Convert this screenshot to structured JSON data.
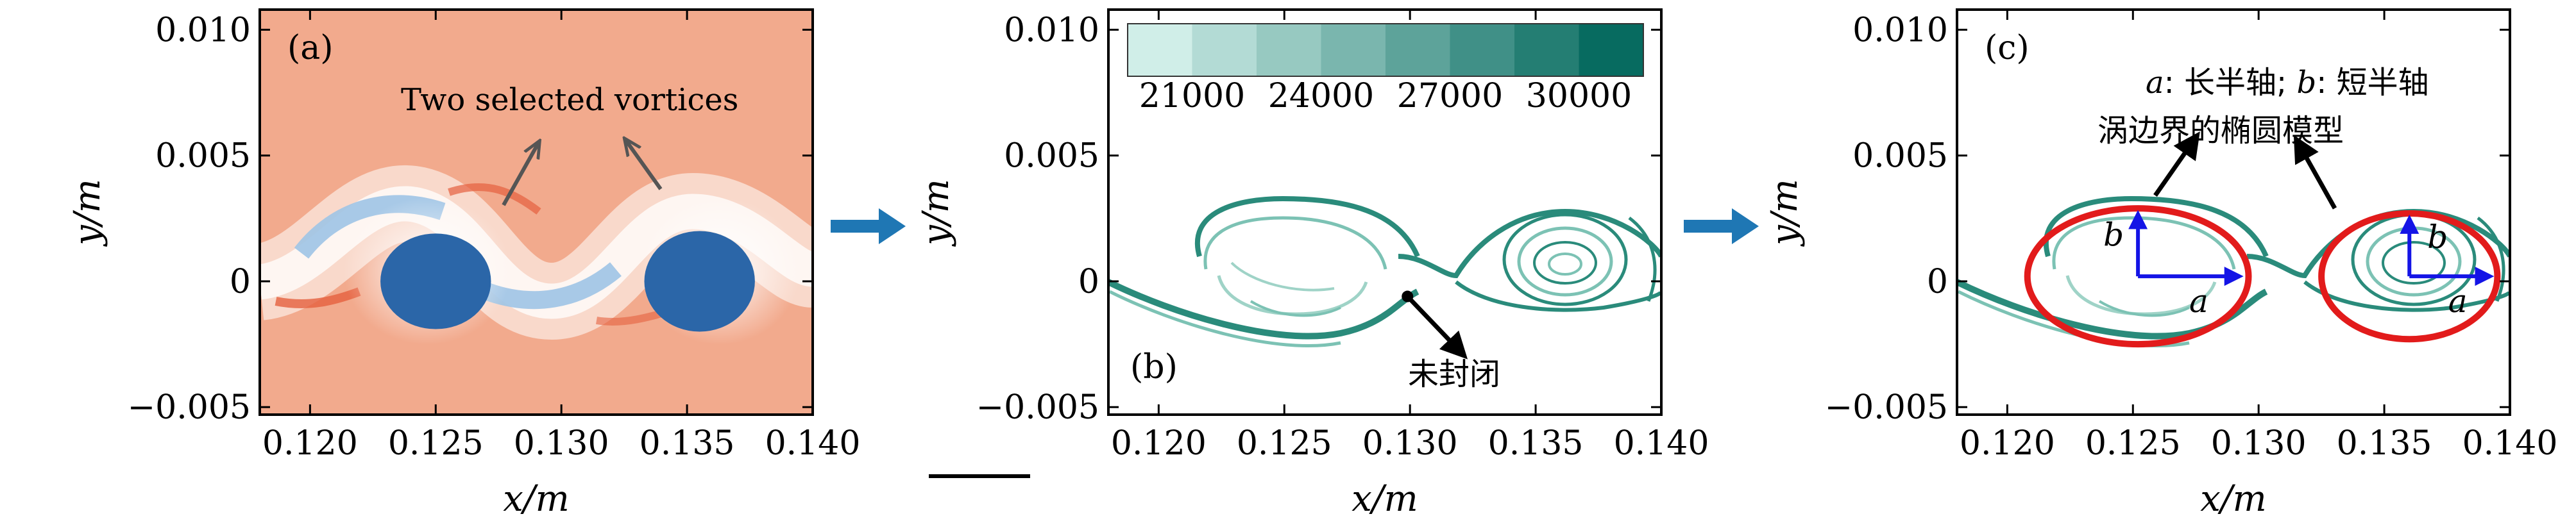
{
  "colors": {
    "background_field": "#f2aa8d",
    "vortex": "#2b66a8",
    "arrow_blue": "#1f77b4",
    "teal": "#2a8b7b",
    "ellipse_red": "#e21b1b",
    "axis_vector": "#1414e6"
  },
  "chart_data": [
    {
      "type": "heatmap",
      "panel_label": "(a)",
      "xlabel": "x/m",
      "ylabel": "y/m",
      "xlim": [
        0.118,
        0.14
      ],
      "ylim": [
        -0.0053,
        0.0108
      ],
      "xticks": [
        "0.120",
        "0.125",
        "0.130",
        "0.135",
        "0.140"
      ],
      "yticks": [
        "0.010",
        "0.005",
        "0",
        "−0.005"
      ],
      "annotation": "Two selected vortices",
      "vortices": [
        {
          "x": 0.125,
          "y": 0.0,
          "rx": 0.0022,
          "ry": 0.0019
        },
        {
          "x": 0.1355,
          "y": 0.0,
          "rx": 0.0022,
          "ry": 0.002
        }
      ]
    },
    {
      "type": "contour",
      "panel_label": "(b)",
      "xlabel": "x/m",
      "ylabel": "y/m",
      "xlim": [
        0.118,
        0.14
      ],
      "ylim": [
        -0.0053,
        0.0108
      ],
      "xticks": [
        "0.120",
        "0.125",
        "0.130",
        "0.135",
        "0.140"
      ],
      "yticks": [
        "0.010",
        "0.005",
        "0",
        "−0.005"
      ],
      "colorbar_ticks": [
        "21000",
        "24000",
        "27000",
        "30000"
      ],
      "colorbar_levels": [
        19500,
        21000,
        22500,
        24000,
        25500,
        27000,
        28500,
        30000,
        31500
      ],
      "annotation": "未封闭",
      "annotation_point": {
        "x": 0.1299,
        "y": -0.0006
      }
    },
    {
      "type": "contour",
      "panel_label": "(c)",
      "xlabel": "x/m",
      "ylabel": "y/m",
      "xlim": [
        0.118,
        0.14
      ],
      "ylim": [
        -0.0053,
        0.0108
      ],
      "xticks": [
        "0.120",
        "0.125",
        "0.130",
        "0.135",
        "0.140"
      ],
      "yticks": [
        "0.010",
        "0.005",
        "0",
        "−0.005"
      ],
      "legend_text": {
        "a_italic": "a",
        "a_rest": ": 长半轴; ",
        "b_italic": "b",
        "b_rest": ": 短半轴"
      },
      "annotation": "涡边界的椭圆模型",
      "ellipses": [
        {
          "cx": 0.1252,
          "cy": 0.0002,
          "a": 0.0044,
          "b": 0.0027,
          "label_a": "a",
          "label_b": "b"
        },
        {
          "cx": 0.136,
          "cy": 0.0002,
          "a": 0.0035,
          "b": 0.0025,
          "label_a": "a",
          "label_b": "b"
        }
      ]
    }
  ]
}
